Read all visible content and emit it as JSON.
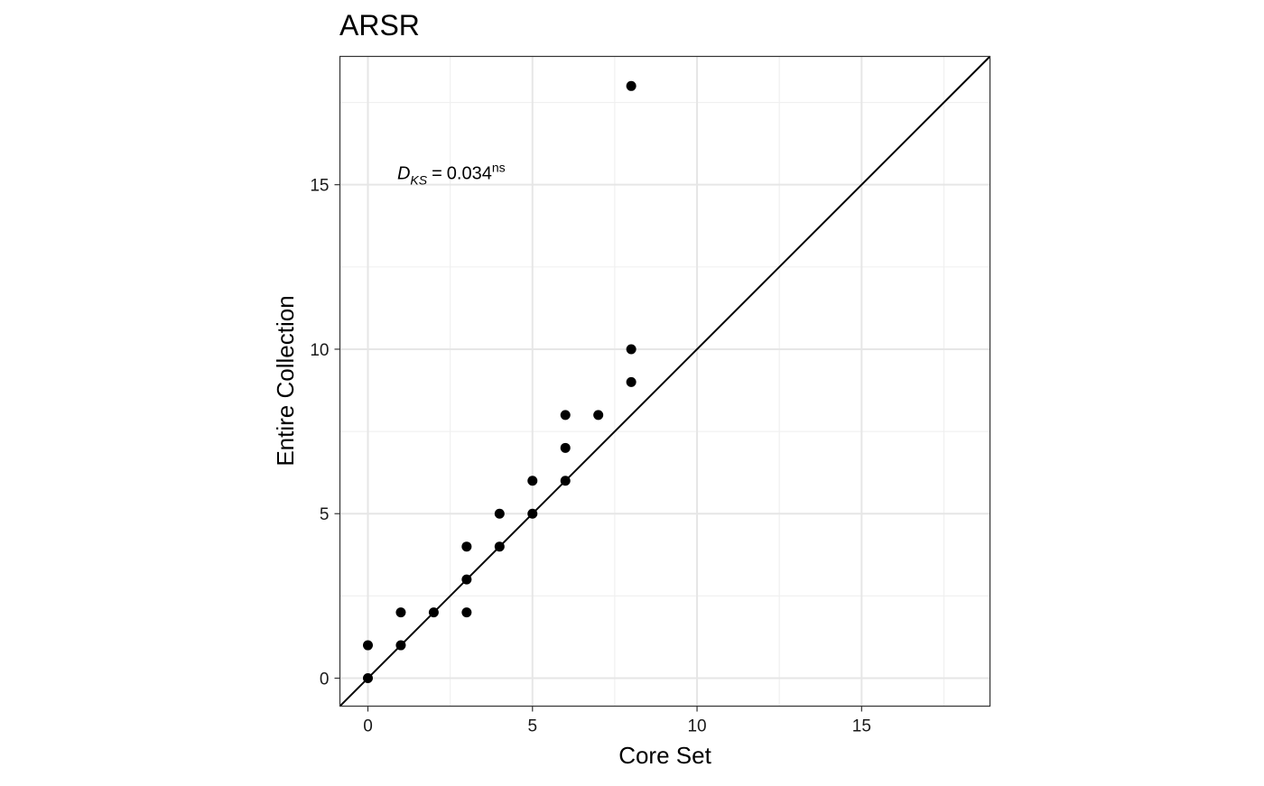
{
  "chart_data": {
    "type": "scatter",
    "title": "ARSR",
    "xlabel": "Core Set",
    "ylabel": "Entire Collection",
    "xlim": [
      -0.85,
      18.9
    ],
    "ylim": [
      -0.85,
      18.9
    ],
    "x_ticks": [
      0,
      5,
      10,
      15
    ],
    "y_ticks": [
      0,
      5,
      10,
      15
    ],
    "x_tick_labels": [
      "0",
      "5",
      "10",
      "15"
    ],
    "y_tick_labels": [
      "0",
      "5",
      "10",
      "15"
    ],
    "grid": true,
    "reference_line": "y = x",
    "annotation": {
      "symbol": "D",
      "subscript": "KS",
      "equals": "=",
      "value": "0.034",
      "superscript": "ns",
      "x": 1,
      "y": 15.3
    },
    "series": [
      {
        "color": "#000000",
        "points": [
          [
            0,
            0
          ],
          [
            0,
            1
          ],
          [
            1,
            1
          ],
          [
            1,
            2
          ],
          [
            2,
            2
          ],
          [
            3,
            2
          ],
          [
            3,
            3
          ],
          [
            3,
            4
          ],
          [
            4,
            4
          ],
          [
            4,
            5
          ],
          [
            5,
            5
          ],
          [
            5,
            6
          ],
          [
            6,
            6
          ],
          [
            6,
            7
          ],
          [
            6,
            8
          ],
          [
            7,
            8
          ],
          [
            8,
            9
          ],
          [
            8,
            10
          ],
          [
            8,
            18
          ]
        ]
      }
    ]
  }
}
